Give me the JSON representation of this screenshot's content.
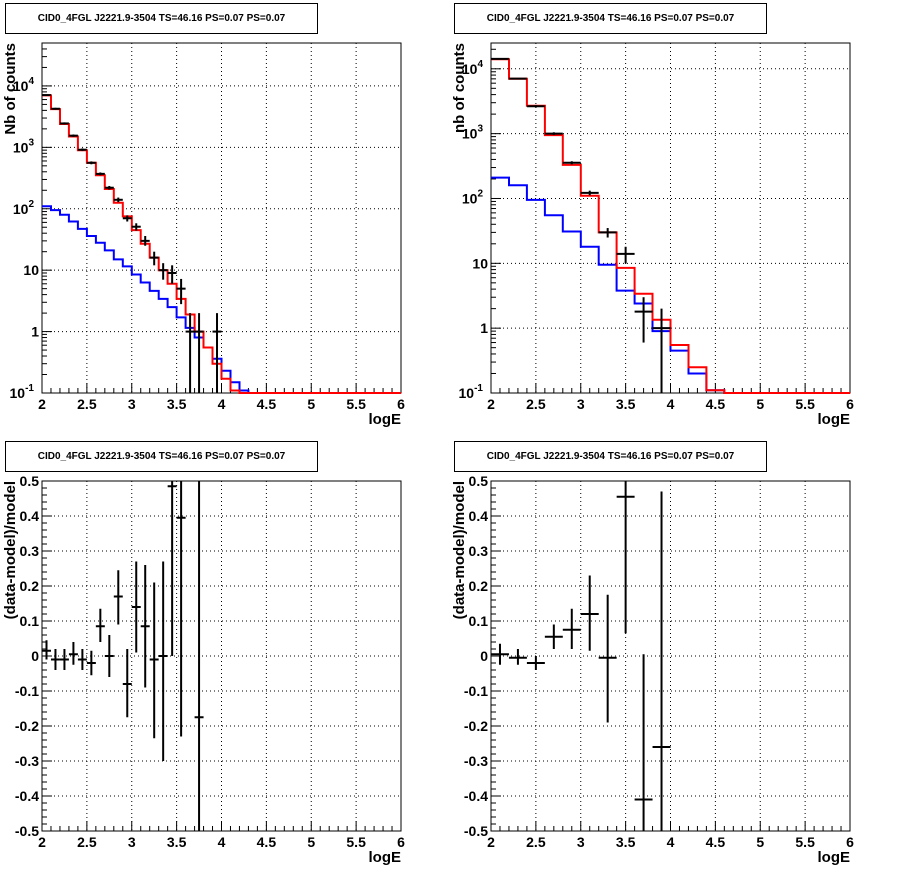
{
  "colors": {
    "data": "#000000",
    "total_model": "#ff0000",
    "source_model": "#0000ff",
    "grid": "#000000"
  },
  "chart_data": [
    {
      "type": "histogram",
      "title": "CID0_4FGL J2221.9-3504 TS=46.16 PS=0.07 PS=0.07",
      "xlabel": "logE",
      "ylabel": "Nb of counts",
      "log_y": true,
      "grid": true,
      "xlim": [
        2,
        6
      ],
      "ylim": [
        0.1,
        50000
      ],
      "xticks": [
        "2",
        "2.5",
        "3",
        "3.5",
        "4",
        "4.5",
        "5",
        "5.5",
        "6"
      ],
      "yticks": [
        "10^-1",
        "1",
        "10",
        "10^2",
        "10^3",
        "10^4"
      ],
      "bin_edges": [
        2.0,
        2.1,
        2.2,
        2.3,
        2.4,
        2.5,
        2.6,
        2.7,
        2.8,
        2.9,
        3.0,
        3.1,
        3.2,
        3.3,
        3.4,
        3.5,
        3.6,
        3.7,
        3.8,
        3.9,
        4.0,
        4.1,
        4.2,
        4.3,
        4.4,
        4.5,
        4.6,
        4.7,
        4.8,
        4.9,
        5.0,
        5.1,
        5.2,
        5.3,
        5.4,
        5.5,
        5.6,
        5.7,
        5.8,
        5.9,
        6.0
      ],
      "series": [
        {
          "role": "total_model",
          "values": [
            7000,
            4200,
            2400,
            1500,
            900,
            560,
            350,
            210,
            125,
            75,
            45,
            27,
            16,
            10,
            6,
            3.4,
            1.9,
            1.0,
            0.55,
            0.3,
            0.17,
            0.11,
            0.1,
            0.1,
            0.1,
            0.1,
            0.1,
            0.1,
            0.1,
            0.1,
            0.1,
            0.1,
            0.1,
            0.1,
            0.1,
            0.1,
            0.1,
            0.1,
            0.1,
            0.1
          ]
        },
        {
          "role": "source_model",
          "values": [
            110,
            95,
            80,
            62,
            47,
            36,
            28,
            21,
            15,
            11.5,
            8.5,
            6.3,
            4.6,
            3.4,
            2.5,
            1.7,
            1.15,
            0.8,
            0.55,
            0.36,
            0.23,
            0.15,
            0.11,
            0.1,
            0.1,
            0.1,
            0.1,
            0.1,
            0.1,
            0.1,
            0.1,
            0.1,
            0.1,
            0.1,
            0.1,
            0.1,
            0.1,
            0.1,
            0.1,
            0.1
          ]
        },
        {
          "role": "data",
          "points": [
            {
              "x": 2.05,
              "y": 7100,
              "lo": 6900,
              "hi": 7300
            },
            {
              "x": 2.15,
              "y": 4250,
              "lo": 4100,
              "hi": 4400
            },
            {
              "x": 2.25,
              "y": 2450,
              "lo": 2350,
              "hi": 2550
            },
            {
              "x": 2.35,
              "y": 1550,
              "lo": 1480,
              "hi": 1620
            },
            {
              "x": 2.45,
              "y": 915,
              "lo": 870,
              "hi": 960
            },
            {
              "x": 2.55,
              "y": 560,
              "lo": 530,
              "hi": 590
            },
            {
              "x": 2.65,
              "y": 370,
              "lo": 350,
              "hi": 390
            },
            {
              "x": 2.75,
              "y": 220,
              "lo": 205,
              "hi": 235
            },
            {
              "x": 2.85,
              "y": 140,
              "lo": 128,
              "hi": 152
            },
            {
              "x": 2.95,
              "y": 70,
              "lo": 62,
              "hi": 78
            },
            {
              "x": 3.05,
              "y": 51,
              "lo": 44,
              "hi": 58
            },
            {
              "x": 3.15,
              "y": 30,
              "lo": 25,
              "hi": 36
            },
            {
              "x": 3.25,
              "y": 16,
              "lo": 12,
              "hi": 20
            },
            {
              "x": 3.35,
              "y": 10,
              "lo": 7,
              "hi": 13
            },
            {
              "x": 3.45,
              "y": 9,
              "lo": 6,
              "hi": 12
            },
            {
              "x": 3.55,
              "y": 5,
              "lo": 2.8,
              "hi": 7.2
            },
            {
              "x": 3.65,
              "y": 1,
              "lo": 0.1,
              "hi": 2
            },
            {
              "x": 3.75,
              "y": 1,
              "lo": 0.1,
              "hi": 2
            },
            {
              "x": 3.95,
              "y": 1,
              "lo": 0.1,
              "hi": 2
            }
          ]
        }
      ]
    },
    {
      "type": "histogram",
      "title": "CID0_4FGL J2221.9-3504 TS=46.16 PS=0.07 PS=0.07",
      "xlabel": "logE",
      "ylabel": "nb of counts",
      "log_y": true,
      "grid": true,
      "xlim": [
        2,
        6
      ],
      "ylim": [
        0.1,
        25000
      ],
      "xticks": [
        "2",
        "2.5",
        "3",
        "3.5",
        "4",
        "4.5",
        "5",
        "5.5",
        "6"
      ],
      "yticks": [
        "10^-1",
        "1",
        "10",
        "10^2",
        "10^3",
        "10^4"
      ],
      "bin_edges": [
        2.0,
        2.2,
        2.4,
        2.6,
        2.8,
        3.0,
        3.2,
        3.4,
        3.6,
        3.8,
        4.0,
        4.2,
        4.4,
        4.6,
        4.8,
        5.0,
        5.2,
        5.4,
        5.6,
        5.8,
        6.0
      ],
      "series": [
        {
          "role": "total_model",
          "values": [
            14000,
            7000,
            2700,
            950,
            330,
            110,
            30,
            8.5,
            3.4,
            1.35,
            0.55,
            0.25,
            0.11,
            0.1,
            0.1,
            0.1,
            0.1,
            0.1,
            0.1,
            0.1
          ]
        },
        {
          "role": "source_model",
          "values": [
            210,
            160,
            95,
            55,
            31,
            18,
            9.5,
            3.8,
            2.4,
            0.9,
            0.45,
            0.2,
            0.11,
            0.1,
            0.1,
            0.1,
            0.1,
            0.1,
            0.1,
            0.1
          ]
        },
        {
          "role": "data",
          "points": [
            {
              "x": 2.1,
              "y": 14200,
              "lo": 13900,
              "hi": 14500
            },
            {
              "x": 2.3,
              "y": 7050,
              "lo": 6900,
              "hi": 7200
            },
            {
              "x": 2.5,
              "y": 2650,
              "lo": 2550,
              "hi": 2750
            },
            {
              "x": 2.7,
              "y": 1000,
              "lo": 950,
              "hi": 1050
            },
            {
              "x": 2.9,
              "y": 355,
              "lo": 335,
              "hi": 375
            },
            {
              "x": 3.1,
              "y": 122,
              "lo": 112,
              "hi": 132
            },
            {
              "x": 3.3,
              "y": 30,
              "lo": 25,
              "hi": 35
            },
            {
              "x": 3.5,
              "y": 14,
              "lo": 10,
              "hi": 18
            },
            {
              "x": 3.7,
              "y": 1.8,
              "lo": 0.6,
              "hi": 3
            },
            {
              "x": 3.9,
              "y": 1,
              "lo": 0.1,
              "hi": 2
            }
          ]
        }
      ]
    },
    {
      "type": "scatter",
      "title": "CID0_4FGL J2221.9-3504 TS=46.16 PS=0.07 PS=0.07",
      "xlabel": "logE",
      "ylabel": "(data-model)/model",
      "grid": true,
      "xlim": [
        2,
        6
      ],
      "ylim": [
        -0.5,
        0.5
      ],
      "xticks": [
        "2",
        "2.5",
        "3",
        "3.5",
        "4",
        "4.5",
        "5",
        "5.5",
        "6"
      ],
      "yticks": [
        "-0.5",
        "-0.4",
        "-0.3",
        "-0.2",
        "-0.1",
        "0",
        "0.1",
        "0.2",
        "0.3",
        "0.4",
        "0.5"
      ],
      "points": [
        {
          "x": 2.05,
          "y": 0.015,
          "lo": -0.01,
          "hi": 0.045,
          "xerr": 0.05
        },
        {
          "x": 2.15,
          "y": -0.01,
          "lo": -0.04,
          "hi": 0.02,
          "xerr": 0.05
        },
        {
          "x": 2.25,
          "y": -0.01,
          "lo": -0.04,
          "hi": 0.02,
          "xerr": 0.05
        },
        {
          "x": 2.35,
          "y": 0.005,
          "lo": -0.025,
          "hi": 0.04,
          "xerr": 0.05
        },
        {
          "x": 2.45,
          "y": -0.01,
          "lo": -0.04,
          "hi": 0.02,
          "xerr": 0.05
        },
        {
          "x": 2.55,
          "y": -0.02,
          "lo": -0.055,
          "hi": 0.015,
          "xerr": 0.05
        },
        {
          "x": 2.65,
          "y": 0.085,
          "lo": 0.04,
          "hi": 0.135,
          "xerr": 0.05
        },
        {
          "x": 2.75,
          "y": 0.0,
          "lo": -0.06,
          "hi": 0.06,
          "xerr": 0.05
        },
        {
          "x": 2.85,
          "y": 0.17,
          "lo": 0.09,
          "hi": 0.245,
          "xerr": 0.05
        },
        {
          "x": 2.95,
          "y": -0.08,
          "lo": -0.175,
          "hi": 0.02,
          "xerr": 0.05
        },
        {
          "x": 3.05,
          "y": 0.14,
          "lo": 0.01,
          "hi": 0.27,
          "xerr": 0.05
        },
        {
          "x": 3.15,
          "y": 0.085,
          "lo": -0.09,
          "hi": 0.26,
          "xerr": 0.05
        },
        {
          "x": 3.25,
          "y": -0.01,
          "lo": -0.235,
          "hi": 0.21,
          "xerr": 0.05
        },
        {
          "x": 3.35,
          "y": 0.0,
          "lo": -0.3,
          "hi": 0.27,
          "xerr": 0.05
        },
        {
          "x": 3.45,
          "y": 0.485,
          "lo": 0.0,
          "hi": 0.5,
          "xerr": 0.05
        },
        {
          "x": 3.55,
          "y": 0.395,
          "lo": -0.23,
          "hi": 0.5,
          "xerr": 0.05
        },
        {
          "x": 3.75,
          "y": -0.175,
          "lo": -0.5,
          "hi": 0.5,
          "xerr": 0.05
        }
      ]
    },
    {
      "type": "scatter",
      "title": "CID0_4FGL J2221.9-3504 TS=46.16 PS=0.07 PS=0.07",
      "xlabel": "logE",
      "ylabel": "(data-model)/model",
      "grid": true,
      "xlim": [
        2,
        6
      ],
      "ylim": [
        -0.5,
        0.5
      ],
      "xticks": [
        "2",
        "2.5",
        "3",
        "3.5",
        "4",
        "4.5",
        "5",
        "5.5",
        "6"
      ],
      "yticks": [
        "-0.5",
        "-0.4",
        "-0.3",
        "-0.2",
        "-0.1",
        "0",
        "0.1",
        "0.2",
        "0.3",
        "0.4",
        "0.5"
      ],
      "points": [
        {
          "x": 2.1,
          "y": 0.005,
          "lo": -0.025,
          "hi": 0.035,
          "xerr": 0.1
        },
        {
          "x": 2.3,
          "y": -0.005,
          "lo": -0.025,
          "hi": 0.02,
          "xerr": 0.1
        },
        {
          "x": 2.5,
          "y": -0.02,
          "lo": -0.04,
          "hi": 0.0,
          "xerr": 0.1
        },
        {
          "x": 2.7,
          "y": 0.055,
          "lo": 0.02,
          "hi": 0.09,
          "xerr": 0.1
        },
        {
          "x": 2.9,
          "y": 0.075,
          "lo": 0.02,
          "hi": 0.135,
          "xerr": 0.1
        },
        {
          "x": 3.1,
          "y": 0.12,
          "lo": 0.015,
          "hi": 0.23,
          "xerr": 0.1
        },
        {
          "x": 3.3,
          "y": -0.005,
          "lo": -0.19,
          "hi": 0.175,
          "xerr": 0.1
        },
        {
          "x": 3.5,
          "y": 0.455,
          "lo": 0.065,
          "hi": 0.5,
          "xerr": 0.1
        },
        {
          "x": 3.7,
          "y": -0.41,
          "lo": -0.5,
          "hi": 0.005,
          "xerr": 0.1
        },
        {
          "x": 3.9,
          "y": -0.26,
          "lo": -0.5,
          "hi": 0.47,
          "xerr": 0.1
        }
      ]
    }
  ]
}
